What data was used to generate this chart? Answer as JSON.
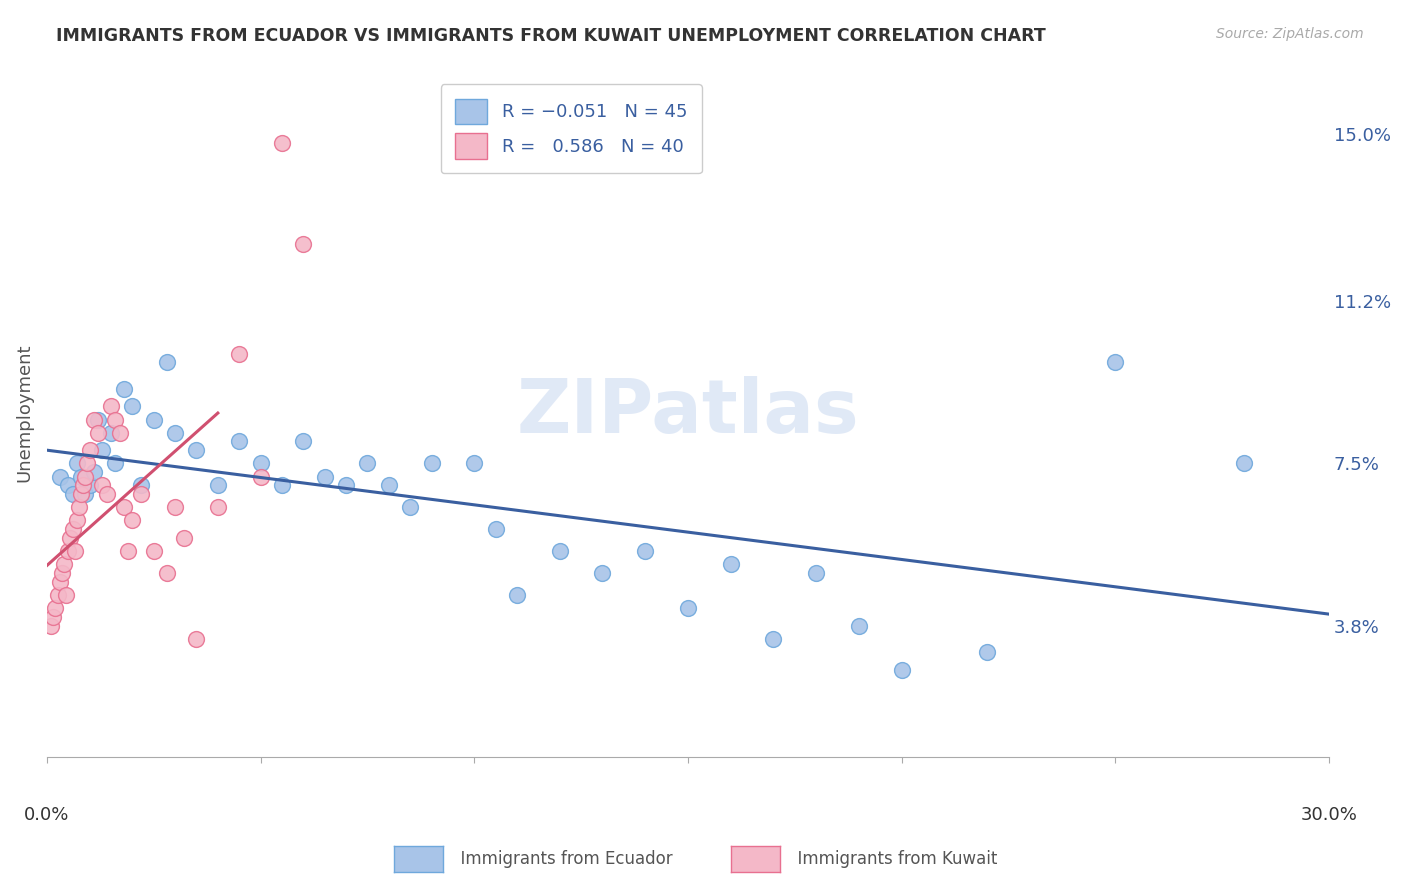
{
  "title": "IMMIGRANTS FROM ECUADOR VS IMMIGRANTS FROM KUWAIT UNEMPLOYMENT CORRELATION CHART",
  "source": "Source: ZipAtlas.com",
  "ylabel": "Unemployment",
  "yticks": [
    3.8,
    7.5,
    11.2,
    15.0
  ],
  "ytick_labels": [
    "3.8%",
    "7.5%",
    "11.2%",
    "15.0%"
  ],
  "xmin": 0.0,
  "xmax": 30.0,
  "ymin": 0.8,
  "ymax": 16.5,
  "watermark": "ZIPatlas",
  "ecuador_color": "#a8c4e8",
  "ecuador_edge": "#6fa8dc",
  "kuwait_color": "#f4b8c8",
  "kuwait_edge": "#e87090",
  "ecuador_line_color": "#3a5fa0",
  "kuwait_line_color": "#d05070",
  "ecuador_R": -0.051,
  "ecuador_N": 45,
  "kuwait_R": 0.586,
  "kuwait_N": 40,
  "ecuador_x": [
    0.3,
    0.5,
    0.6,
    0.7,
    0.8,
    0.9,
    1.0,
    1.1,
    1.2,
    1.3,
    1.5,
    1.6,
    1.8,
    2.0,
    2.2,
    2.5,
    2.8,
    3.0,
    3.5,
    4.0,
    4.5,
    5.0,
    5.5,
    6.0,
    6.5,
    7.0,
    7.5,
    8.0,
    8.5,
    9.0,
    10.0,
    10.5,
    11.0,
    12.0,
    13.0,
    14.0,
    15.0,
    16.0,
    17.0,
    18.0,
    19.0,
    20.0,
    22.0,
    25.0,
    28.0
  ],
  "ecuador_y": [
    7.2,
    7.0,
    6.8,
    7.5,
    7.2,
    6.8,
    7.0,
    7.3,
    8.5,
    7.8,
    8.2,
    7.5,
    9.2,
    8.8,
    7.0,
    8.5,
    9.8,
    8.2,
    7.8,
    7.0,
    8.0,
    7.5,
    7.0,
    8.0,
    7.2,
    7.0,
    7.5,
    7.0,
    6.5,
    7.5,
    7.5,
    6.0,
    4.5,
    5.5,
    5.0,
    5.5,
    4.2,
    5.2,
    3.5,
    5.0,
    3.8,
    2.8,
    3.2,
    9.8,
    7.5
  ],
  "kuwait_x": [
    0.1,
    0.15,
    0.2,
    0.25,
    0.3,
    0.35,
    0.4,
    0.45,
    0.5,
    0.55,
    0.6,
    0.65,
    0.7,
    0.75,
    0.8,
    0.85,
    0.9,
    0.95,
    1.0,
    1.1,
    1.2,
    1.3,
    1.4,
    1.5,
    1.6,
    1.7,
    1.8,
    1.9,
    2.0,
    2.2,
    2.5,
    2.8,
    3.0,
    3.2,
    3.5,
    4.0,
    4.5,
    5.0,
    5.5,
    6.0
  ],
  "kuwait_y": [
    3.8,
    4.0,
    4.2,
    4.5,
    4.8,
    5.0,
    5.2,
    4.5,
    5.5,
    5.8,
    6.0,
    5.5,
    6.2,
    6.5,
    6.8,
    7.0,
    7.2,
    7.5,
    7.8,
    8.5,
    8.2,
    7.0,
    6.8,
    8.8,
    8.5,
    8.2,
    6.5,
    5.5,
    6.2,
    6.8,
    5.5,
    5.0,
    6.5,
    5.8,
    3.5,
    6.5,
    10.0,
    7.2,
    14.8,
    12.5
  ]
}
